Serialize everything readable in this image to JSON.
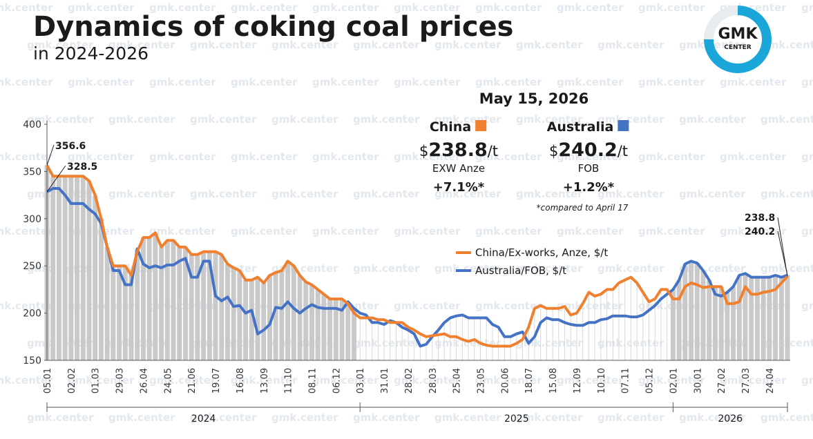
{
  "chart_data": {
    "type": "line",
    "title": "Dynamics of coking coal prices",
    "subtitle": "in 2024-2026",
    "logo": {
      "main": "GMK",
      "sub": "CENTER"
    },
    "watermark": "gmk.center",
    "categories": [
      "05.01",
      null,
      null,
      null,
      "02.02",
      null,
      null,
      null,
      "01.03",
      null,
      null,
      null,
      "29.03",
      null,
      null,
      null,
      "26.04",
      null,
      null,
      null,
      "24.05",
      null,
      null,
      null,
      "21.06",
      null,
      null,
      null,
      "19.07",
      null,
      null,
      null,
      "16.08",
      null,
      null,
      null,
      "13.09",
      null,
      null,
      null,
      "11.10",
      null,
      null,
      null,
      "08.11",
      null,
      null,
      null,
      "06.12",
      null,
      null,
      null,
      "03.01",
      null,
      null,
      null,
      "31.01",
      null,
      null,
      null,
      "28.02",
      null,
      null,
      null,
      "28.03",
      null,
      null,
      null,
      "25.04",
      null,
      null,
      null,
      "23.05",
      null,
      null,
      null,
      "20.06",
      null,
      null,
      null,
      "18.07",
      null,
      null,
      null,
      "15.08",
      null,
      null,
      null,
      "12.09",
      null,
      null,
      null,
      "10.10",
      null,
      null,
      null,
      "07.11",
      null,
      null,
      null,
      "05.12",
      null,
      null,
      null,
      "02.01",
      null,
      null,
      null,
      "30.01",
      null,
      null,
      null,
      "27.02",
      null,
      null,
      null,
      "27.03",
      null,
      null,
      null,
      "24.04",
      null,
      null,
      null
    ],
    "x_groups": [
      {
        "label": "2024",
        "count": 52
      },
      {
        "label": "2025",
        "count": 52
      },
      {
        "label": "2026",
        "count": 20
      }
    ],
    "series": [
      {
        "name": "China/Ex-works, Anze, $/t",
        "color": "#f07f2e",
        "first_label": "356.6",
        "last_label": "238.8",
        "values": [
          356.6,
          345,
          345,
          345,
          345,
          345,
          345,
          340,
          325,
          300,
          270,
          250,
          250,
          250,
          240,
          265,
          280,
          280,
          285,
          270,
          277,
          277,
          270,
          270,
          262,
          262,
          265,
          265,
          265,
          262,
          252,
          248,
          245,
          235,
          235,
          238,
          232,
          240,
          243,
          245,
          255,
          250,
          240,
          233,
          230,
          225,
          220,
          215,
          215,
          215,
          210,
          200,
          195,
          195,
          195,
          193,
          193,
          190,
          190,
          190,
          185,
          182,
          178,
          175,
          176,
          177,
          178,
          175,
          175,
          172,
          170,
          172,
          168,
          166,
          165,
          165,
          165,
          165,
          168,
          172,
          185,
          205,
          208,
          205,
          205,
          205,
          207,
          198,
          200,
          210,
          222,
          218,
          220,
          225,
          225,
          232,
          235,
          238,
          232,
          222,
          212,
          215,
          225,
          225,
          215,
          215,
          228,
          232,
          230,
          227,
          228,
          228,
          228,
          210,
          210,
          212,
          228,
          220,
          220,
          222,
          223,
          225,
          232,
          238.8
        ]
      },
      {
        "name": "Australia/FOB, $/t",
        "color": "#4472c4",
        "first_label": "328.5",
        "last_label": "240.2",
        "values": [
          328.5,
          332,
          332,
          325,
          316,
          316,
          316,
          310,
          305,
          295,
          270,
          245,
          245,
          230,
          230,
          268,
          252,
          248,
          250,
          248,
          251,
          251,
          255,
          258,
          238,
          238,
          255,
          255,
          218,
          213,
          217,
          207,
          208,
          200,
          203,
          178,
          182,
          188,
          206,
          205,
          212,
          205,
          200,
          205,
          209,
          206,
          205,
          205,
          205,
          203,
          212,
          205,
          200,
          198,
          190,
          190,
          188,
          192,
          190,
          185,
          182,
          178,
          165,
          167,
          175,
          182,
          190,
          195,
          197,
          198,
          195,
          195,
          195,
          195,
          188,
          185,
          175,
          175,
          178,
          180,
          168,
          175,
          190,
          195,
          193,
          193,
          190,
          188,
          187,
          187,
          190,
          190,
          193,
          194,
          197,
          197,
          197,
          196,
          196,
          198,
          203,
          208,
          215,
          220,
          225,
          235,
          252,
          255,
          253,
          245,
          235,
          220,
          218,
          222,
          228,
          240,
          242,
          238,
          238,
          238,
          238,
          240,
          238,
          240.2
        ]
      }
    ],
    "ylim": [
      150,
      400
    ],
    "yticks": [
      150,
      200,
      250,
      300,
      350,
      400
    ],
    "grid": false,
    "legend": "right",
    "panel": {
      "date": "May 15, 2026",
      "items": [
        {
          "name": "China",
          "currency": "$",
          "price": "238.8",
          "unit": "/t",
          "basis": "EXW Anze",
          "change": "+7.1%*"
        },
        {
          "name": "Australia",
          "currency": "$",
          "price": "240.2",
          "unit": "/t",
          "basis": "FOB",
          "change": "+1.2%*"
        }
      ],
      "note": "*compared to April 17"
    }
  }
}
